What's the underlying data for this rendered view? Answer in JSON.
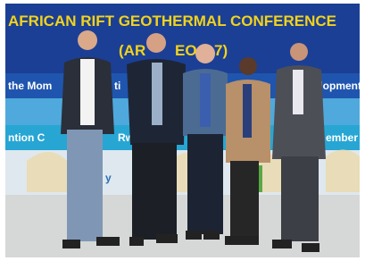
{
  "banner": {
    "title": "AFRICAN RIFT GEOTHERMAL CONFERENCE",
    "subtitle_parts": [
      "(AR",
      "EO -",
      "7)"
    ],
    "line2_parts": [
      "the Mom",
      "ti",
      "velopment"
    ],
    "line3_parts": [
      "ntion C",
      "Rw",
      "ember"
    ],
    "fragment": "y"
  }
}
